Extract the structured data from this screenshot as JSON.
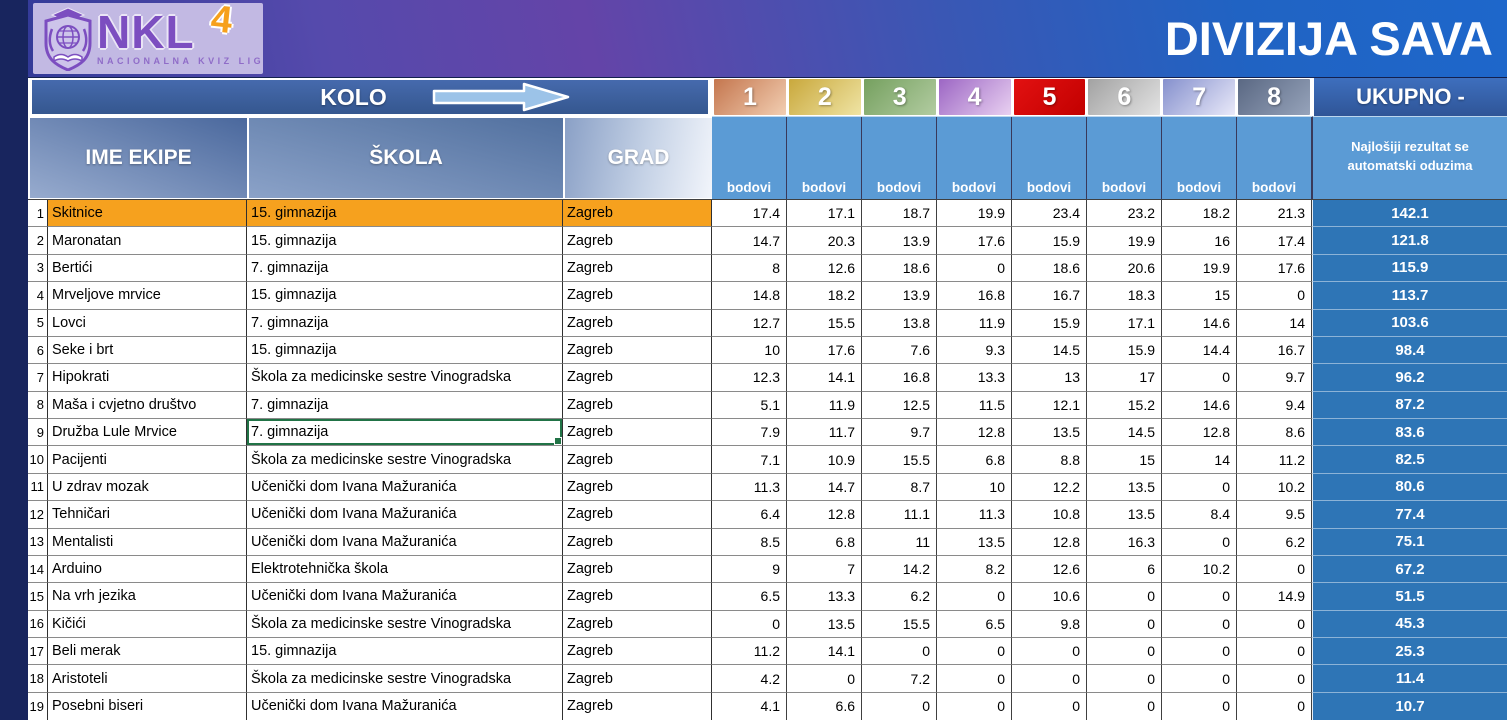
{
  "logo": {
    "name": "NKL",
    "season": "4",
    "subtitle": "NACIONALNA KVIZ LIGA"
  },
  "header": {
    "title": "DIVIZIJA SAVA"
  },
  "colors": {
    "banner_purple": "#6444A8",
    "banner_blue": "#1E67CB",
    "gutter_navy": "#18255E",
    "kolo_band": "#3A5C9E",
    "bodovi_blue": "#5B9BD5",
    "total_blue": "#2E75B6",
    "ukupno_header_blue": "#2F5597",
    "highlight_orange": "#F6A11E",
    "selection_green": "#217346",
    "logo_lavender": "#C2B9E3",
    "logo_four_orange": "#F6A01C"
  },
  "table": {
    "kolo_label": "KOLO",
    "bodovi_label": "bodovi",
    "ukupno_label": "UKUPNO -",
    "ukupno_note": "Najlošiji rezultat se automatski oduzima",
    "columns": {
      "team": "IME EKIPE",
      "school": "ŠKOLA",
      "city": "GRAD"
    },
    "rounds": [
      {
        "label": "1",
        "color_from": "#C4764E",
        "color_to": "#F2CEB2"
      },
      {
        "label": "2",
        "color_from": "#C9A83C",
        "color_to": "#EFE4A4"
      },
      {
        "label": "3",
        "color_from": "#75A05F",
        "color_to": "#B2CCA1"
      },
      {
        "label": "4",
        "color_from": "#9C66C4",
        "color_to": "#E9D1F1"
      },
      {
        "label": "5",
        "color_from": "#E21111",
        "color_to": "#C20000"
      },
      {
        "label": "6",
        "color_from": "#A2A2A2",
        "color_to": "#E3E3E3"
      },
      {
        "label": "7",
        "color_from": "#8590CD",
        "color_to": "#E9E9F9"
      },
      {
        "label": "8",
        "color_from": "#5A6883",
        "color_to": "#96A3BA"
      }
    ],
    "selected_cell": {
      "row": 9,
      "column": "school"
    },
    "rows": [
      {
        "rank": "1",
        "team": "Skitnice",
        "school": "15. gimnazija",
        "city": "Zagreb",
        "scores": [
          "17.4",
          "17.1",
          "18.7",
          "19.9",
          "23.4",
          "23.2",
          "18.2",
          "21.3"
        ],
        "total": "142.1",
        "highlight": true
      },
      {
        "rank": "2",
        "team": "Maronatan",
        "school": "15. gimnazija",
        "city": "Zagreb",
        "scores": [
          "14.7",
          "20.3",
          "13.9",
          "17.6",
          "15.9",
          "19.9",
          "16",
          "17.4"
        ],
        "total": "121.8",
        "highlight": false
      },
      {
        "rank": "3",
        "team": "Bertići",
        "school": "7. gimnazija",
        "city": "Zagreb",
        "scores": [
          "8",
          "12.6",
          "18.6",
          "0",
          "18.6",
          "20.6",
          "19.9",
          "17.6"
        ],
        "total": "115.9",
        "highlight": false
      },
      {
        "rank": "4",
        "team": "Mrveljove mrvice",
        "school": "15. gimnazija",
        "city": "Zagreb",
        "scores": [
          "14.8",
          "18.2",
          "13.9",
          "16.8",
          "16.7",
          "18.3",
          "15",
          "0"
        ],
        "total": "113.7",
        "highlight": false
      },
      {
        "rank": "5",
        "team": "Lovci",
        "school": "7. gimnazija",
        "city": "Zagreb",
        "scores": [
          "12.7",
          "15.5",
          "13.8",
          "11.9",
          "15.9",
          "17.1",
          "14.6",
          "14"
        ],
        "total": "103.6",
        "highlight": false
      },
      {
        "rank": "6",
        "team": "Seke i brt",
        "school": "15. gimnazija",
        "city": "Zagreb",
        "scores": [
          "10",
          "17.6",
          "7.6",
          "9.3",
          "14.5",
          "15.9",
          "14.4",
          "16.7"
        ],
        "total": "98.4",
        "highlight": false
      },
      {
        "rank": "7",
        "team": "Hipokrati",
        "school": "Škola za medicinske sestre Vinogradska",
        "city": "Zagreb",
        "scores": [
          "12.3",
          "14.1",
          "16.8",
          "13.3",
          "13",
          "17",
          "0",
          "9.7"
        ],
        "total": "96.2",
        "highlight": false
      },
      {
        "rank": "8",
        "team": "Maša i cvjetno društvo",
        "school": "7. gimnazija",
        "city": "Zagreb",
        "scores": [
          "5.1",
          "11.9",
          "12.5",
          "11.5",
          "12.1",
          "15.2",
          "14.6",
          "9.4"
        ],
        "total": "87.2",
        "highlight": false
      },
      {
        "rank": "9",
        "team": "Družba Lule Mrvice",
        "school": "7. gimnazija",
        "city": "Zagreb",
        "scores": [
          "7.9",
          "11.7",
          "9.7",
          "12.8",
          "13.5",
          "14.5",
          "12.8",
          "8.6"
        ],
        "total": "83.6",
        "highlight": false
      },
      {
        "rank": "10",
        "team": "Pacijenti",
        "school": "Škola za medicinske sestre Vinogradska",
        "city": "Zagreb",
        "scores": [
          "7.1",
          "10.9",
          "15.5",
          "6.8",
          "8.8",
          "15",
          "14",
          "11.2"
        ],
        "total": "82.5",
        "highlight": false
      },
      {
        "rank": "11",
        "team": "U zdrav mozak",
        "school": "Učenički dom Ivana Mažuranića",
        "city": "Zagreb",
        "scores": [
          "11.3",
          "14.7",
          "8.7",
          "10",
          "12.2",
          "13.5",
          "0",
          "10.2"
        ],
        "total": "80.6",
        "highlight": false
      },
      {
        "rank": "12",
        "team": "Tehničari",
        "school": "Učenički dom Ivana Mažuranića",
        "city": "Zagreb",
        "scores": [
          "6.4",
          "12.8",
          "11.1",
          "11.3",
          "10.8",
          "13.5",
          "8.4",
          "9.5"
        ],
        "total": "77.4",
        "highlight": false
      },
      {
        "rank": "13",
        "team": "Mentalisti",
        "school": "Učenički dom Ivana Mažuranića",
        "city": "Zagreb",
        "scores": [
          "8.5",
          "6.8",
          "11",
          "13.5",
          "12.8",
          "16.3",
          "0",
          "6.2"
        ],
        "total": "75.1",
        "highlight": false
      },
      {
        "rank": "14",
        "team": "Arduino",
        "school": "Elektrotehnička škola",
        "city": "Zagreb",
        "scores": [
          "9",
          "7",
          "14.2",
          "8.2",
          "12.6",
          "6",
          "10.2",
          "0"
        ],
        "total": "67.2",
        "highlight": false
      },
      {
        "rank": "15",
        "team": "Na vrh jezika",
        "school": "Učenički dom Ivana Mažuranića",
        "city": "Zagreb",
        "scores": [
          "6.5",
          "13.3",
          "6.2",
          "0",
          "10.6",
          "0",
          "0",
          "14.9"
        ],
        "total": "51.5",
        "highlight": false
      },
      {
        "rank": "16",
        "team": "Kičići",
        "school": "Škola za medicinske sestre Vinogradska",
        "city": "Zagreb",
        "scores": [
          "0",
          "13.5",
          "15.5",
          "6.5",
          "9.8",
          "0",
          "0",
          "0"
        ],
        "total": "45.3",
        "highlight": false
      },
      {
        "rank": "17",
        "team": "Beli merak",
        "school": "15. gimnazija",
        "city": "Zagreb",
        "scores": [
          "11.2",
          "14.1",
          "0",
          "0",
          "0",
          "0",
          "0",
          "0"
        ],
        "total": "25.3",
        "highlight": false
      },
      {
        "rank": "18",
        "team": "Aristoteli",
        "school": "Škola za medicinske sestre Vinogradska",
        "city": "Zagreb",
        "scores": [
          "4.2",
          "0",
          "7.2",
          "0",
          "0",
          "0",
          "0",
          "0"
        ],
        "total": "11.4",
        "highlight": false
      },
      {
        "rank": "19",
        "team": "Posebni biseri",
        "school": "Učenički dom Ivana Mažuranića",
        "city": "Zagreb",
        "scores": [
          "4.1",
          "6.6",
          "0",
          "0",
          "0",
          "0",
          "0",
          "0"
        ],
        "total": "10.7",
        "highlight": false
      }
    ]
  }
}
